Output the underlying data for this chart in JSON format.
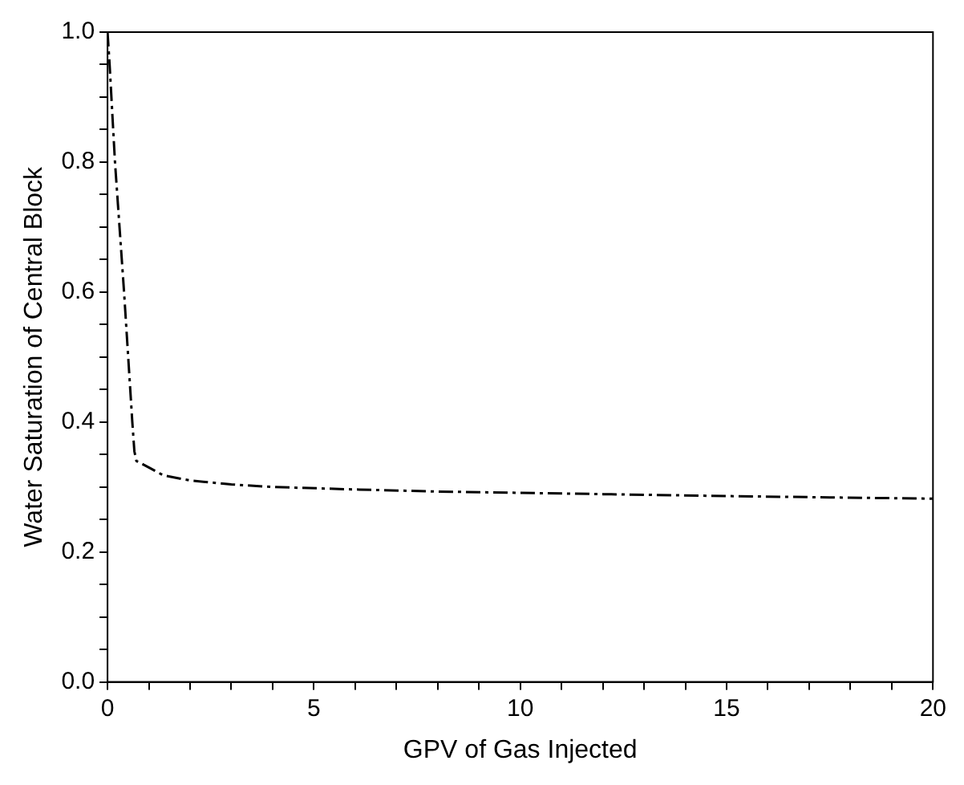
{
  "chart_data": {
    "type": "line",
    "xlabel": "GPV of Gas Injected",
    "ylabel": "Water Saturation of Central Block",
    "series": [
      {
        "color": "#000000",
        "x": [
          0,
          0.05,
          0.18,
          0.4,
          0.6,
          0.65,
          0.7,
          1.0,
          1.35,
          2,
          3,
          4,
          6.1,
          8,
          10,
          12,
          15,
          17.5,
          20
        ],
        "values": [
          1.0,
          0.95,
          0.8,
          0.6,
          0.4,
          0.355,
          0.34,
          0.33,
          0.318,
          0.31,
          0.304,
          0.3,
          0.296,
          0.293,
          0.291,
          0.289,
          0.286,
          0.284,
          0.282
        ]
      }
    ],
    "xlim": [
      0,
      20
    ],
    "ylim": [
      0,
      1
    ],
    "xticks": [
      0,
      {
        "value": 1,
        "label": null
      },
      {
        "value": 2,
        "label": null
      },
      {
        "value": 3,
        "label": null
      },
      {
        "value": 4,
        "label": null
      },
      5,
      {
        "value": 6,
        "label": null
      },
      {
        "value": 7,
        "label": null
      },
      {
        "value": 8,
        "label": null
      },
      {
        "value": 9,
        "label": null
      },
      10,
      {
        "value": 11,
        "label": null
      },
      {
        "value": 12,
        "label": null
      },
      {
        "value": 13,
        "label": null
      },
      {
        "value": 14,
        "label": null
      },
      15,
      {
        "value": 16,
        "label": null
      },
      {
        "value": 17,
        "label": null
      },
      {
        "value": 18,
        "label": null
      },
      {
        "value": 19,
        "label": null
      },
      20
    ],
    "yticks": [
      {
        "value": 0,
        "label": "0.0"
      },
      {
        "value": 0.05,
        "label": null
      },
      {
        "value": 0.1,
        "label": null
      },
      {
        "value": 0.15,
        "label": null
      },
      {
        "value": 0.2,
        "label": "0.2"
      },
      {
        "value": 0.25,
        "label": null
      },
      {
        "value": 0.3,
        "label": null
      },
      {
        "value": 0.35,
        "label": null
      },
      {
        "value": 0.4,
        "label": "0.4"
      },
      {
        "value": 0.45,
        "label": null
      },
      {
        "value": 0.5,
        "label": null
      },
      {
        "value": 0.55,
        "label": null
      },
      {
        "value": 0.6,
        "label": "0.6"
      },
      {
        "value": 0.65,
        "label": null
      },
      {
        "value": 0.7,
        "label": null
      },
      {
        "value": 0.75,
        "label": null
      },
      {
        "value": 0.8,
        "label": "0.8"
      },
      {
        "value": 0.85,
        "label": null
      },
      {
        "value": 0.9,
        "label": null
      },
      {
        "value": 0.95,
        "label": null
      },
      {
        "value": 1,
        "label": "1.0"
      }
    ],
    "grid": false,
    "legend": false,
    "marker": "none",
    "line_style": "dashed"
  }
}
